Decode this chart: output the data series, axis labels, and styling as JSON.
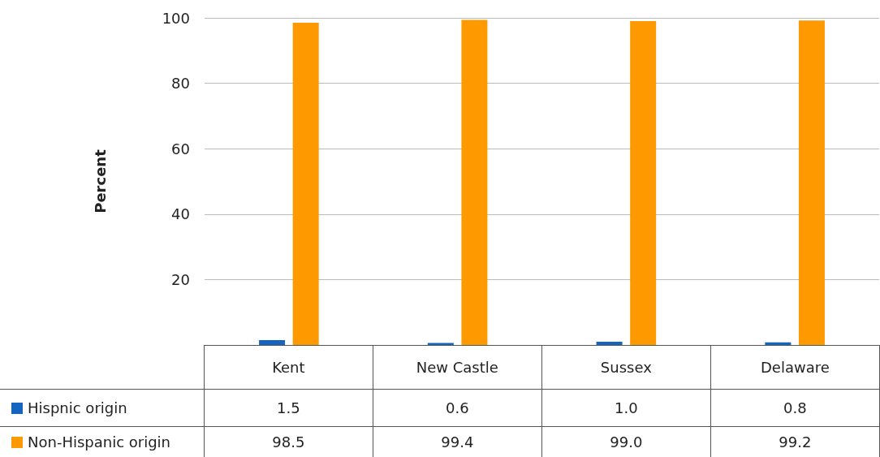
{
  "chart_data": {
    "type": "bar",
    "ylabel": "Percent",
    "categories": [
      "Kent",
      "New Castle",
      "Sussex",
      "Delaware"
    ],
    "series": [
      {
        "name": "Hispnic origin",
        "color": "#1565c0",
        "values": [
          1.5,
          0.6,
          1.0,
          0.8
        ],
        "value_labels": [
          "1.5",
          "0.6",
          "1.0",
          "0.8"
        ]
      },
      {
        "name": "Non-Hispanic origin",
        "color": "#ff9900",
        "values": [
          98.5,
          99.4,
          99.0,
          99.2
        ],
        "value_labels": [
          "98.5",
          "99.4",
          "99.0",
          "99.2"
        ]
      }
    ],
    "ylim": [
      0,
      100
    ],
    "yticks": [
      20,
      40,
      60,
      80,
      100
    ],
    "grid": "y",
    "legend": "bottom"
  }
}
